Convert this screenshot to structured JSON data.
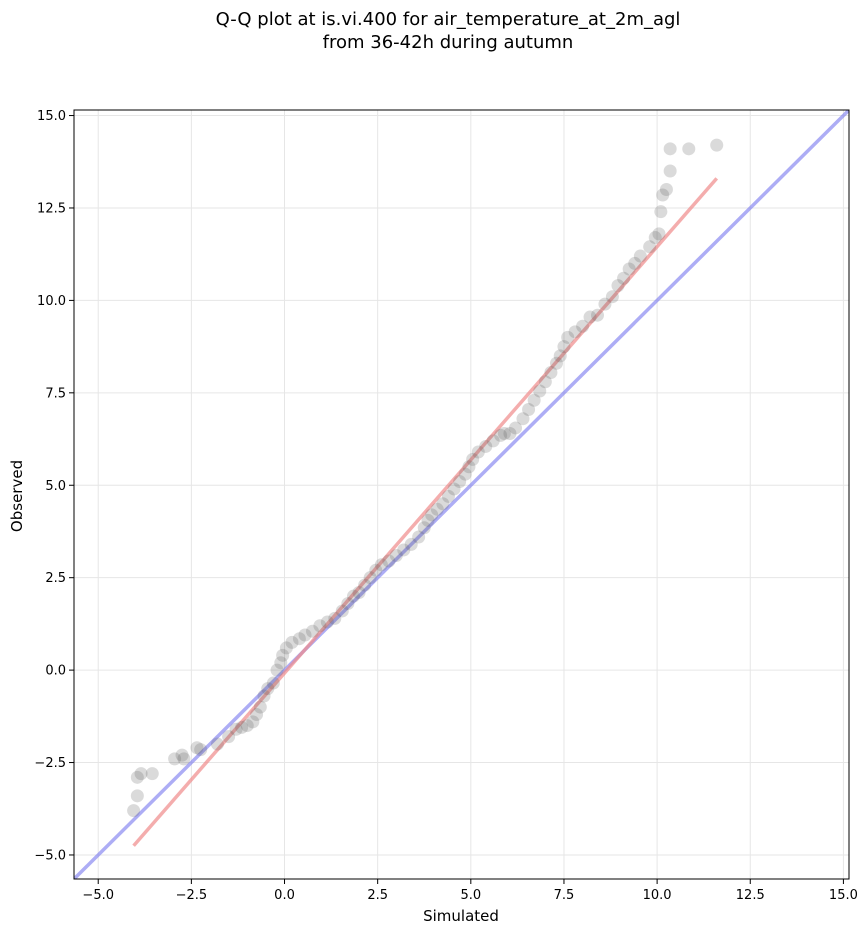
{
  "chart_data": {
    "type": "scatter",
    "title_line1": "Q-Q plot at is.vi.400 for air_temperature_at_2m_agl",
    "title_line2": "from 36-42h during autumn",
    "xlabel": "Simulated",
    "ylabel": "Observed",
    "xlim": [
      -5.65,
      15.15
    ],
    "ylim": [
      -5.65,
      15.15
    ],
    "xticks": [
      -5.0,
      -2.5,
      0.0,
      2.5,
      5.0,
      7.5,
      10.0,
      12.5,
      15.0
    ],
    "yticks": [
      -5.0,
      -2.5,
      0.0,
      2.5,
      5.0,
      7.5,
      10.0,
      12.5,
      15.0
    ],
    "xtick_labels": [
      "−5.0",
      "−2.5",
      "0.0",
      "2.5",
      "5.0",
      "7.5",
      "10.0",
      "12.5",
      "15.0"
    ],
    "ytick_labels": [
      "−5.0",
      "−2.5",
      "0.0",
      "2.5",
      "5.0",
      "7.5",
      "10.0",
      "12.5",
      "15.0"
    ],
    "grid": true,
    "identity_line": {
      "color": "#7777ee",
      "from": [
        -5.65,
        -5.65
      ],
      "to": [
        15.15,
        15.15
      ]
    },
    "fit_line": {
      "color": "#f08a8a",
      "from": [
        -4.05,
        -4.75
      ],
      "to": [
        11.6,
        13.3
      ]
    },
    "point_color": "#555555",
    "points": [
      [
        -4.05,
        -3.8
      ],
      [
        -3.95,
        -3.4
      ],
      [
        -3.95,
        -2.9
      ],
      [
        -3.85,
        -2.8
      ],
      [
        -3.55,
        -2.8
      ],
      [
        -2.95,
        -2.4
      ],
      [
        -2.75,
        -2.3
      ],
      [
        -2.7,
        -2.4
      ],
      [
        -2.35,
        -2.1
      ],
      [
        -2.25,
        -2.15
      ],
      [
        -1.8,
        -2.0
      ],
      [
        -1.5,
        -1.8
      ],
      [
        -1.3,
        -1.6
      ],
      [
        -1.15,
        -1.55
      ],
      [
        -1.0,
        -1.5
      ],
      [
        -0.85,
        -1.4
      ],
      [
        -0.75,
        -1.2
      ],
      [
        -0.65,
        -1.0
      ],
      [
        -0.55,
        -0.7
      ],
      [
        -0.45,
        -0.5
      ],
      [
        -0.3,
        -0.35
      ],
      [
        -0.2,
        0.0
      ],
      [
        -0.1,
        0.2
      ],
      [
        -0.05,
        0.4
      ],
      [
        0.05,
        0.6
      ],
      [
        0.2,
        0.75
      ],
      [
        0.4,
        0.85
      ],
      [
        0.55,
        0.95
      ],
      [
        0.75,
        1.05
      ],
      [
        0.95,
        1.2
      ],
      [
        1.15,
        1.3
      ],
      [
        1.35,
        1.4
      ],
      [
        1.55,
        1.6
      ],
      [
        1.7,
        1.8
      ],
      [
        1.85,
        2.0
      ],
      [
        2.0,
        2.1
      ],
      [
        2.15,
        2.3
      ],
      [
        2.3,
        2.5
      ],
      [
        2.45,
        2.7
      ],
      [
        2.6,
        2.85
      ],
      [
        2.8,
        2.95
      ],
      [
        3.0,
        3.1
      ],
      [
        3.2,
        3.25
      ],
      [
        3.4,
        3.4
      ],
      [
        3.6,
        3.6
      ],
      [
        3.75,
        3.85
      ],
      [
        3.85,
        4.05
      ],
      [
        3.95,
        4.2
      ],
      [
        4.1,
        4.35
      ],
      [
        4.25,
        4.5
      ],
      [
        4.4,
        4.7
      ],
      [
        4.55,
        4.9
      ],
      [
        4.7,
        5.1
      ],
      [
        4.85,
        5.3
      ],
      [
        4.95,
        5.5
      ],
      [
        5.05,
        5.7
      ],
      [
        5.2,
        5.9
      ],
      [
        5.4,
        6.05
      ],
      [
        5.6,
        6.2
      ],
      [
        5.8,
        6.35
      ],
      [
        5.9,
        6.4
      ],
      [
        6.05,
        6.4
      ],
      [
        6.2,
        6.55
      ],
      [
        6.4,
        6.8
      ],
      [
        6.55,
        7.05
      ],
      [
        6.7,
        7.3
      ],
      [
        6.85,
        7.55
      ],
      [
        7.0,
        7.8
      ],
      [
        7.15,
        8.05
      ],
      [
        7.3,
        8.3
      ],
      [
        7.4,
        8.5
      ],
      [
        7.5,
        8.75
      ],
      [
        7.6,
        9.0
      ],
      [
        7.8,
        9.15
      ],
      [
        8.0,
        9.3
      ],
      [
        8.2,
        9.55
      ],
      [
        8.4,
        9.6
      ],
      [
        8.6,
        9.9
      ],
      [
        8.8,
        10.1
      ],
      [
        8.95,
        10.4
      ],
      [
        9.1,
        10.6
      ],
      [
        9.25,
        10.85
      ],
      [
        9.4,
        11.0
      ],
      [
        9.55,
        11.2
      ],
      [
        9.8,
        11.45
      ],
      [
        9.95,
        11.7
      ],
      [
        10.05,
        11.8
      ],
      [
        10.1,
        12.4
      ],
      [
        10.15,
        12.85
      ],
      [
        10.25,
        13.0
      ],
      [
        10.35,
        13.5
      ],
      [
        10.35,
        14.1
      ],
      [
        10.85,
        14.1
      ],
      [
        11.6,
        14.2
      ]
    ]
  }
}
